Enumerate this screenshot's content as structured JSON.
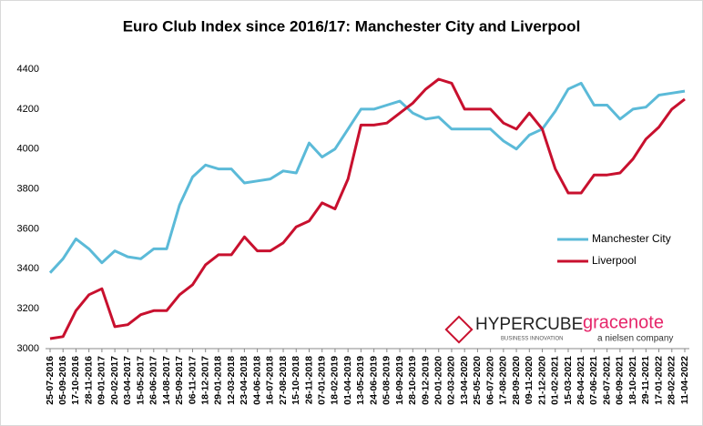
{
  "chart_data": {
    "type": "line",
    "title": "Euro Club Index since 2016/17: Manchester City and Liverpool",
    "categories": [
      "25-07-2016",
      "05-09-2016",
      "17-10-2016",
      "28-11-2016",
      "09-01-2017",
      "20-02-2017",
      "03-04-2017",
      "15-05-2017",
      "26-06-2017",
      "14-08-2017",
      "25-09-2017",
      "06-11-2017",
      "18-12-2017",
      "29-01-2018",
      "12-03-2018",
      "23-04-2018",
      "04-06-2018",
      "16-07-2018",
      "27-08-2018",
      "15-10-2018",
      "26-11-2018",
      "07-01-2019",
      "18-02-2019",
      "01-04-2019",
      "13-05-2019",
      "24-06-2019",
      "05-08-2019",
      "16-09-2019",
      "28-10-2019",
      "09-12-2019",
      "20-01-2020",
      "02-03-2020",
      "13-04-2020",
      "25-05-2020",
      "06-07-2020",
      "17-08-2020",
      "28-09-2020",
      "09-11-2020",
      "21-12-2020",
      "01-02-2021",
      "15-03-2021",
      "26-04-2021",
      "07-06-2021",
      "26-07-2021",
      "06-09-2021",
      "18-10-2021",
      "29-11-2021",
      "17-01-2022",
      "28-02-2022",
      "11-04-2022"
    ],
    "series": [
      {
        "name": "Manchester City",
        "color": "#5bbad8",
        "values": [
          3380,
          3450,
          3550,
          3500,
          3430,
          3490,
          3460,
          3450,
          3500,
          3500,
          3720,
          3860,
          3920,
          3900,
          3900,
          3830,
          3840,
          3850,
          3890,
          3880,
          4030,
          3960,
          4000,
          4100,
          4200,
          4200,
          4220,
          4240,
          4180,
          4150,
          4160,
          4100,
          4100,
          4100,
          4100,
          4040,
          4000,
          4070,
          4100,
          4190,
          4300,
          4330,
          4220,
          4220,
          4150,
          4200,
          4210,
          4270,
          4280,
          4290
        ]
      },
      {
        "name": "Liverpool",
        "color": "#c8102e",
        "values": [
          3050,
          3060,
          3190,
          3270,
          3300,
          3110,
          3120,
          3170,
          3190,
          3190,
          3270,
          3320,
          3420,
          3470,
          3470,
          3560,
          3490,
          3490,
          3530,
          3610,
          3640,
          3730,
          3700,
          3850,
          4120,
          4120,
          4130,
          4180,
          4230,
          4300,
          4350,
          4330,
          4200,
          4200,
          4200,
          4130,
          4100,
          4180,
          4100,
          3900,
          3780,
          3780,
          3870,
          3870,
          3880,
          3950,
          4050,
          4110,
          4200,
          4250
        ]
      }
    ],
    "ylim": [
      3000,
      4400
    ],
    "yticks": [
      3000,
      3200,
      3400,
      3600,
      3800,
      4000,
      4200,
      4400
    ],
    "grid": false,
    "legend": "right",
    "logos": [
      {
        "name": "HYPERCUBE",
        "tagline": "BUSINESS INNOVATION"
      },
      {
        "name": "gracenote",
        "tagline": "a nielsen company"
      }
    ]
  }
}
